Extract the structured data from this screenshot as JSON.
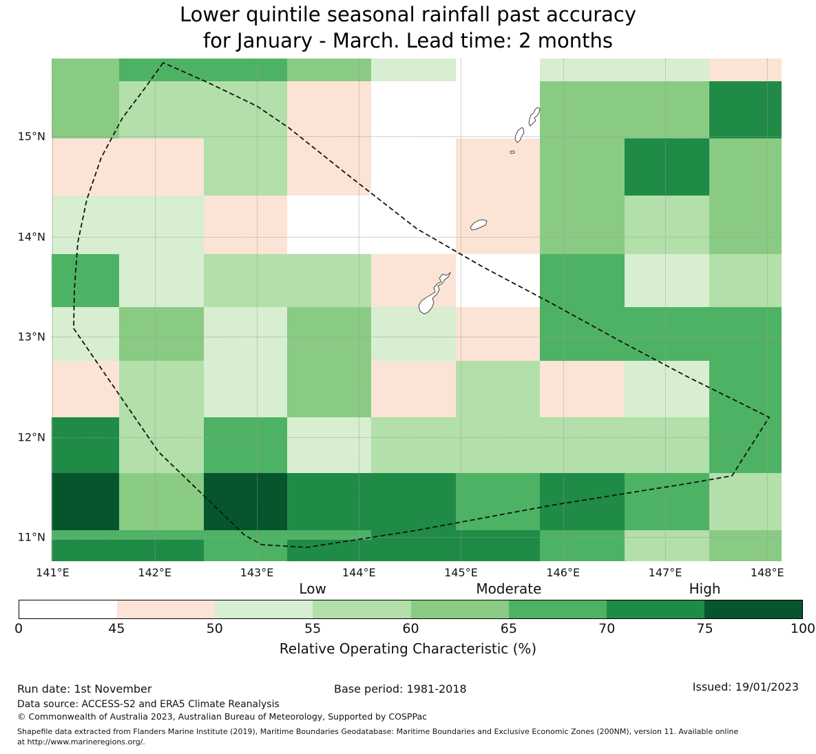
{
  "title": {
    "line1": "Lower quintile seasonal rainfall past accuracy",
    "line2": "for January - March. Lead time: 2 months"
  },
  "chart_data": {
    "type": "heatmap",
    "title": "Lower quintile seasonal rainfall past accuracy for January - March. Lead time: 2 months",
    "x_axis": {
      "ticks": [
        "141°E",
        "142°E",
        "143°E",
        "144°E",
        "145°E",
        "146°E",
        "147°E",
        "148°E"
      ],
      "range_deg": [
        140.99,
        148.14
      ]
    },
    "y_axis": {
      "ticks": [
        "15°N",
        "14°N",
        "13°N",
        "12°N",
        "11°N"
      ],
      "range_deg": [
        10.76,
        15.78
      ]
    },
    "grid": {
      "lon_edges": [
        140.99,
        141.65,
        142.48,
        143.3,
        144.12,
        144.54,
        144.95,
        145.77,
        146.6,
        147.43,
        148.14
      ],
      "lat_edges": [
        15.78,
        15.55,
        14.98,
        14.41,
        13.83,
        13.3,
        12.76,
        12.2,
        11.64,
        11.07,
        10.97,
        10.76
      ],
      "values": [
        [
          "60-65",
          "65-70",
          "65-70",
          "60-65",
          "50-55",
          "50-55",
          "0-45",
          "50-55",
          "50-55",
          "45-50"
        ],
        [
          "60-65",
          "55-60",
          "55-60",
          "45-50",
          "0-45",
          "0-45",
          "0-45",
          "60-65",
          "60-65",
          "70-75"
        ],
        [
          "45-50",
          "45-50",
          "55-60",
          "45-50",
          "0-45",
          "0-45",
          "45-50",
          "60-65",
          "70-75",
          "60-65"
        ],
        [
          "50-55",
          "50-55",
          "45-50",
          "0-45",
          "0-45",
          "0-45",
          "45-50",
          "60-65",
          "55-60",
          "60-65"
        ],
        [
          "65-70",
          "50-55",
          "55-60",
          "55-60",
          "45-50",
          "45-50",
          "0-45",
          "65-70",
          "50-55",
          "55-60"
        ],
        [
          "50-55",
          "60-65",
          "50-55",
          "60-65",
          "50-55",
          "50-55",
          "45-50",
          "65-70",
          "65-70",
          "65-70"
        ],
        [
          "45-50",
          "55-60",
          "50-55",
          "60-65",
          "45-50",
          "45-50",
          "55-60",
          "45-50",
          "50-55",
          "65-70"
        ],
        [
          "70-75",
          "55-60",
          "65-70",
          "50-55",
          "55-60",
          "55-60",
          "55-60",
          "55-60",
          "55-60",
          "65-70"
        ],
        [
          "75-100",
          "60-65",
          "75-100",
          "70-75",
          "70-75",
          "70-75",
          "65-70",
          "70-75",
          "65-70",
          "55-60"
        ],
        [
          "65-70",
          "65-70",
          "65-70",
          "65-70",
          "70-75",
          "70-75",
          "70-75",
          "65-70",
          "55-60",
          "60-65"
        ],
        [
          "70-75",
          "70-75",
          "65-70",
          "70-75",
          "70-75",
          "70-75",
          "70-75",
          "65-70",
          "55-60",
          "60-65"
        ]
      ]
    },
    "legend": {
      "label": "Relative Operating Characteristic (%)",
      "ticks": [
        "0",
        "45",
        "50",
        "55",
        "60",
        "65",
        "70",
        "75",
        "100"
      ],
      "categories": [
        "Low",
        "Moderate",
        "High"
      ],
      "bins": [
        {
          "range": "0-45",
          "color": "#ffffff"
        },
        {
          "range": "45-50",
          "color": "#fbe4d5"
        },
        {
          "range": "50-55",
          "color": "#d7eed0"
        },
        {
          "range": "55-60",
          "color": "#b2dfaa"
        },
        {
          "range": "60-65",
          "color": "#8acb84"
        },
        {
          "range": "65-70",
          "color": "#4eb264"
        },
        {
          "range": "70-75",
          "color": "#1f8b46"
        },
        {
          "range": "75-100",
          "color": "#07552c"
        }
      ],
      "legend_position": "bottom",
      "grid_on": true
    }
  },
  "footer": {
    "run_date": "Run date: 1st November",
    "base_period": "Base period: 1981-2018",
    "issued": "Issued: 19/01/2023",
    "data_source": "Data source: ACCESS-S2 and ERA5 Climate Reanalysis",
    "copyright": "© Commonwealth of Australia 2023, Australian Bureau of Meteorology, Supported by COSPPac",
    "shapefile_note_line1": "Shapefile data extracted from Flanders Marine Institute (2019), Maritime Boundaries Geodatabase: Maritime Boundaries and Exclusive Economic Zones (200NM), version 11. Available online",
    "shapefile_note_line2": "at http://www.marineregions.org/."
  }
}
